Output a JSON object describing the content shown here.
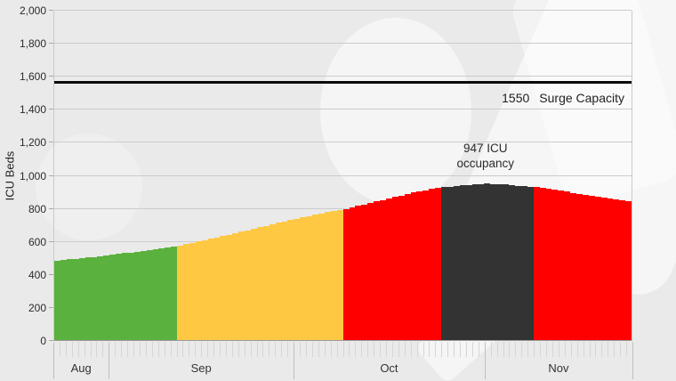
{
  "surge": {
    "value": "1550",
    "label": "Surge Capacity"
  },
  "annotation": {
    "line1": "947 ICU",
    "line2": "occupancy"
  },
  "chart_data": {
    "type": "area",
    "title": "",
    "xlabel": "",
    "ylabel": "ICU Beds",
    "ylim": [
      0,
      2000
    ],
    "y_ticks": [
      0,
      200,
      400,
      600,
      800,
      1000,
      1200,
      1400,
      1600,
      1800,
      2000
    ],
    "y_tick_labels": [
      "0",
      "200",
      "400",
      "600",
      "800",
      "1,000",
      "1,200",
      "1,400",
      "1,600",
      "1,800",
      "2,000"
    ],
    "grid": true,
    "legend": false,
    "x_months": [
      {
        "label": "Aug",
        "days": 9
      },
      {
        "label": "Sep",
        "days": 30
      },
      {
        "label": "Oct",
        "days": 31
      },
      {
        "label": "Nov",
        "days": 24
      }
    ],
    "values": [
      480,
      484,
      488,
      492,
      496,
      500,
      504,
      509,
      513,
      517,
      522,
      526,
      531,
      535,
      540,
      545,
      550,
      555,
      560,
      565,
      572,
      580,
      588,
      596,
      604,
      612,
      620,
      629,
      638,
      647,
      656,
      665,
      674,
      683,
      692,
      701,
      710,
      719,
      727,
      735,
      743,
      751,
      759,
      767,
      774,
      781,
      788,
      795,
      804,
      813,
      822,
      831,
      840,
      849,
      858,
      867,
      876,
      885,
      893,
      901,
      908,
      915,
      921,
      926,
      930,
      933,
      936,
      939,
      942,
      945,
      947,
      945,
      943,
      941,
      938,
      935,
      932,
      930,
      928,
      922,
      916,
      910,
      904,
      898,
      892,
      886,
      880,
      874,
      868,
      862,
      856,
      850,
      845,
      840
    ],
    "zones": [
      {
        "name": "green",
        "start": 0,
        "end": 19,
        "color": "#5bb13d"
      },
      {
        "name": "amber",
        "start": 20,
        "end": 46,
        "color": "#fec843"
      },
      {
        "name": "red-rising",
        "start": 47,
        "end": 62,
        "color": "#ff0000"
      },
      {
        "name": "dark-current",
        "start": 63,
        "end": 77,
        "color": "#333333"
      },
      {
        "name": "red-falling",
        "start": 78,
        "end": 93,
        "color": "#ff0000"
      }
    ],
    "reference_line": {
      "value": 1550,
      "label": "Surge Capacity"
    },
    "annotation": {
      "day": 70,
      "value": 947,
      "text": "947 ICU occupancy"
    },
    "colors": {
      "background": "#eaeaea",
      "gridline": "#cbcbcb",
      "surge_line": "#0a0a0a",
      "text": "#2b2b2b"
    }
  }
}
